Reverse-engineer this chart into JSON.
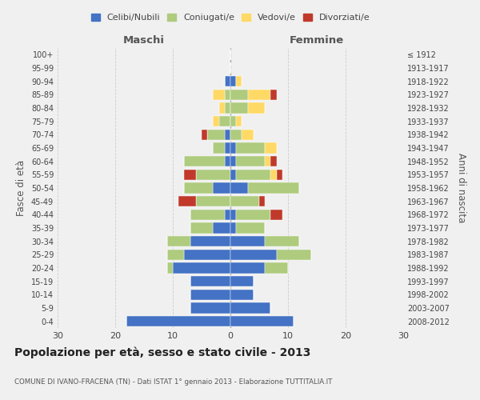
{
  "age_groups": [
    "0-4",
    "5-9",
    "10-14",
    "15-19",
    "20-24",
    "25-29",
    "30-34",
    "35-39",
    "40-44",
    "45-49",
    "50-54",
    "55-59",
    "60-64",
    "65-69",
    "70-74",
    "75-79",
    "80-84",
    "85-89",
    "90-94",
    "95-99",
    "100+"
  ],
  "birth_years": [
    "2008-2012",
    "2003-2007",
    "1998-2002",
    "1993-1997",
    "1988-1992",
    "1983-1987",
    "1978-1982",
    "1973-1977",
    "1968-1972",
    "1963-1967",
    "1958-1962",
    "1953-1957",
    "1948-1952",
    "1943-1947",
    "1938-1942",
    "1933-1937",
    "1928-1932",
    "1923-1927",
    "1918-1922",
    "1913-1917",
    "≤ 1912"
  ],
  "male_celibi": [
    18,
    7,
    7,
    7,
    10,
    8,
    7,
    3,
    1,
    0,
    3,
    0,
    1,
    1,
    1,
    0,
    0,
    0,
    1,
    0,
    0
  ],
  "male_coniugati": [
    0,
    0,
    0,
    0,
    1,
    3,
    4,
    4,
    6,
    6,
    5,
    6,
    7,
    2,
    3,
    2,
    1,
    1,
    0,
    0,
    0
  ],
  "male_vedovi": [
    0,
    0,
    0,
    0,
    0,
    0,
    0,
    0,
    0,
    0,
    0,
    0,
    0,
    0,
    0,
    1,
    1,
    2,
    0,
    0,
    0
  ],
  "male_divorziati": [
    0,
    0,
    0,
    0,
    0,
    0,
    0,
    0,
    0,
    3,
    0,
    2,
    0,
    0,
    1,
    0,
    0,
    0,
    0,
    0,
    0
  ],
  "female_celibi": [
    11,
    7,
    4,
    4,
    6,
    8,
    6,
    1,
    1,
    0,
    3,
    1,
    1,
    1,
    0,
    0,
    0,
    0,
    1,
    0,
    0
  ],
  "female_coniugati": [
    0,
    0,
    0,
    0,
    4,
    6,
    6,
    5,
    6,
    5,
    9,
    6,
    5,
    5,
    2,
    1,
    3,
    3,
    0,
    0,
    0
  ],
  "female_vedovi": [
    0,
    0,
    0,
    0,
    0,
    0,
    0,
    0,
    0,
    0,
    0,
    1,
    1,
    2,
    2,
    1,
    3,
    4,
    1,
    0,
    0
  ],
  "female_divorziati": [
    0,
    0,
    0,
    0,
    0,
    0,
    0,
    0,
    2,
    1,
    0,
    1,
    1,
    0,
    0,
    0,
    0,
    1,
    0,
    0,
    0
  ],
  "color_celibi": "#4472C4",
  "color_coniugati": "#AECB7E",
  "color_vedovi": "#FFD966",
  "color_divorziati": "#C0392B",
  "xlim": 30,
  "title": "Popolazione per età, sesso e stato civile - 2013",
  "subtitle": "COMUNE DI IVANO-FRACENA (TN) - Dati ISTAT 1° gennaio 2013 - Elaborazione TUTTITALIA.IT",
  "ylabel_left": "Fasce di età",
  "ylabel_right": "Anni di nascita",
  "label_maschi": "Maschi",
  "label_femmine": "Femmine",
  "legend_celibi": "Celibi/Nubili",
  "legend_coniugati": "Coniugati/e",
  "legend_vedovi": "Vedovi/e",
  "legend_divorziati": "Divorziati/e",
  "bg_color": "#f0f0f0"
}
